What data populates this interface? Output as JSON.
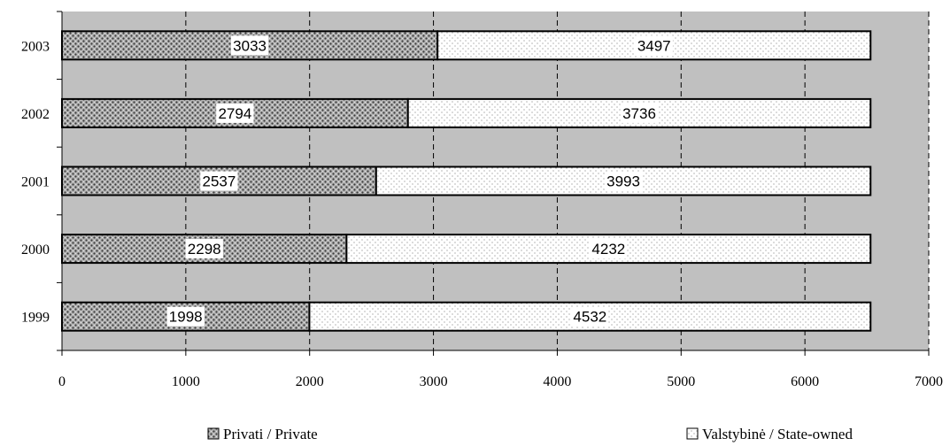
{
  "chart_data": {
    "type": "bar",
    "orientation": "horizontal",
    "stacked": true,
    "categories": [
      "1999",
      "2000",
      "2001",
      "2002",
      "2003"
    ],
    "series": [
      {
        "name": "Privati / Private",
        "values": [
          1998,
          2298,
          2537,
          2794,
          3033
        ],
        "pattern": "dark-dots",
        "color": "#9a9a9a"
      },
      {
        "name": "Valstybinė / State-owned",
        "values": [
          4532,
          4232,
          3993,
          3736,
          3497
        ],
        "pattern": "light-dots",
        "color": "#ffffff"
      }
    ],
    "x_ticks": [
      "0",
      "1000",
      "2000",
      "3000",
      "4000",
      "5000",
      "6000",
      "7000"
    ],
    "xlim": [
      0,
      7000
    ],
    "grid": "vertical-dashed",
    "plot_background": "#c0c0c0",
    "legend_position": "bottom",
    "data_labels": true
  }
}
